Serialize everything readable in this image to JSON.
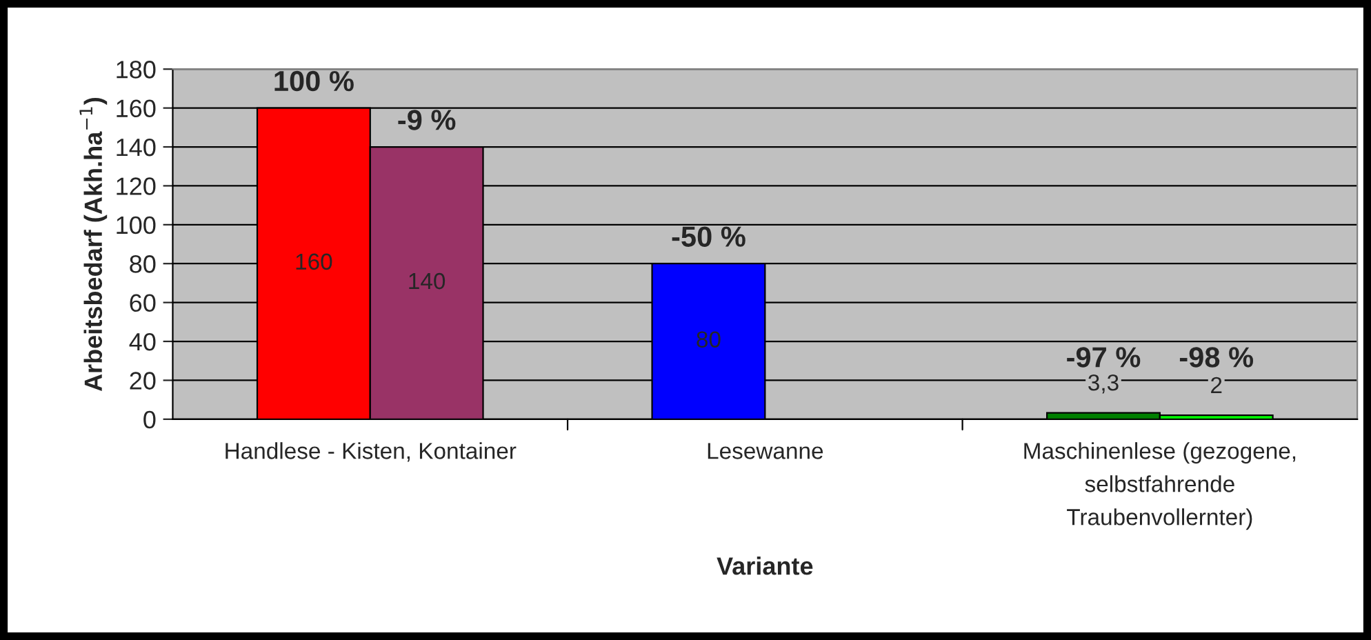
{
  "chart_data": {
    "type": "bar",
    "xlabel": "Variante",
    "ylabel": "Arbeitsbedarf (Akh.ha$^{−1}$)",
    "categories": [
      "Handlese - Kisten, Kontainer",
      "Lesewanne",
      "Maschinenlese (gezogene,\nselbstfahrende\nTraubenvollernter)"
    ],
    "series": [
      {
        "colors": [
          "#ff0000",
          "#0000ff",
          "#008000"
        ],
        "values": [
          160,
          80,
          3.3
        ],
        "value_labels": [
          "160",
          "80",
          "3,3"
        ]
      },
      {
        "colors": [
          "#993366",
          null,
          "#00ff00"
        ],
        "values": [
          140,
          null,
          2
        ],
        "value_labels": [
          "140",
          null,
          "2"
        ]
      }
    ],
    "annotations": [
      "100 %",
      "-9 %",
      "-50 %",
      "-97 %",
      "-98 %"
    ],
    "ylim": [
      0,
      180
    ],
    "yticks": [
      0,
      20,
      40,
      60,
      80,
      100,
      120,
      140,
      160,
      180
    ],
    "grid": "y"
  }
}
